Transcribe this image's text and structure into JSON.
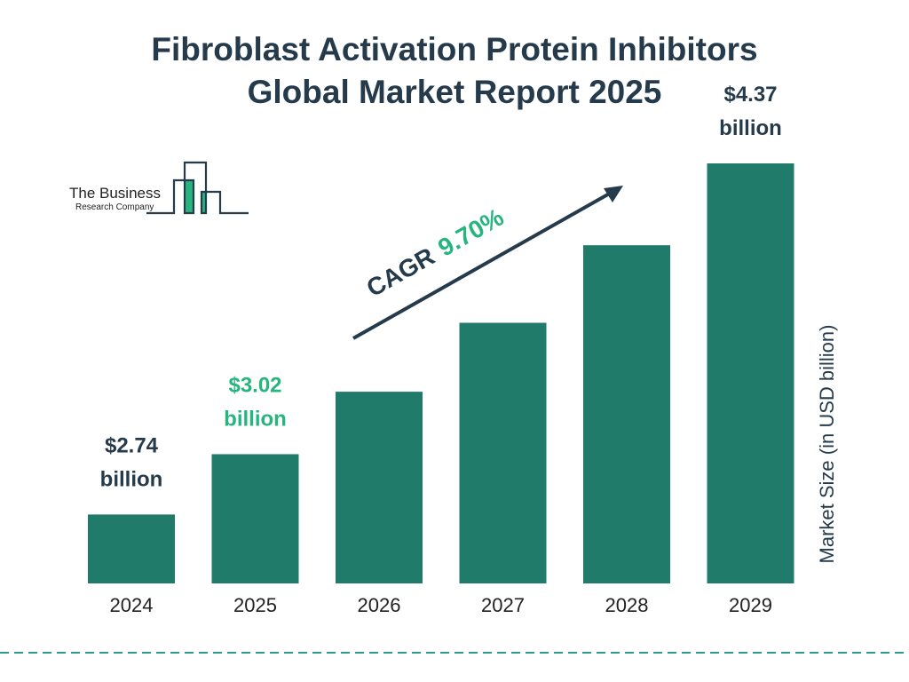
{
  "chart_data": {
    "type": "bar",
    "title": "Fibroblast Activation Protein Inhibitors Global Market Report 2025",
    "title_lines": [
      "Fibroblast Activation Protein Inhibitors",
      "Global Market Report 2025"
    ],
    "categories": [
      "2024",
      "2025",
      "2026",
      "2027",
      "2028",
      "2029"
    ],
    "values": [
      2.74,
      3.02,
      3.31,
      3.63,
      3.99,
      4.37
    ],
    "data_labels": [
      {
        "index": 0,
        "line1": "$2.74",
        "line2": "billion",
        "color": "#253a4b"
      },
      {
        "index": 1,
        "line1": "$3.02",
        "line2": "billion",
        "color": "#27b57f"
      },
      {
        "index": 5,
        "line1": "$4.37",
        "line2": "billion",
        "color": "#253a4b"
      }
    ],
    "ylabel": "Market Size (in USD billion)",
    "xlabel": "",
    "ylim": [
      2.42,
      4.37
    ],
    "grid": false,
    "annotation": {
      "prefix": "CAGR",
      "value": "9.70%"
    },
    "colors": {
      "bar": "#217b6b",
      "text": "#253a4b",
      "accent": "#27b57f",
      "dashed_line": "#2a9d8f"
    }
  },
  "logo": {
    "line1": "The Business",
    "line2": "Research Company"
  }
}
